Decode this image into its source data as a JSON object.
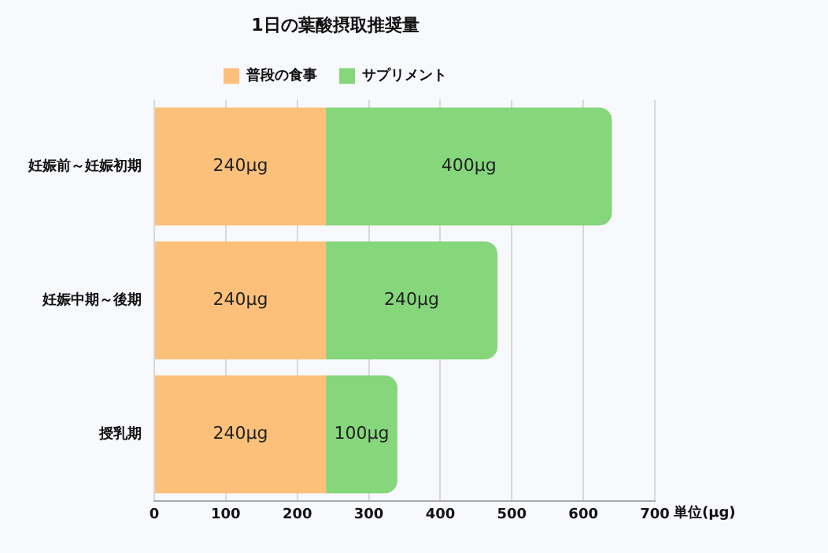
{
  "chart_data": {
    "type": "bar",
    "orientation": "horizontal",
    "stacked": true,
    "title": "1日の葉酸摂取推奨量",
    "xlabel": "単位(μg)",
    "categories": [
      "妊娠前～妊娠初期",
      "妊娠中期～後期",
      "授乳期"
    ],
    "series": [
      {
        "name": "普段の食事",
        "color": "#fdc07a",
        "values": [
          240,
          240,
          240
        ],
        "value_labels": [
          "240μg",
          "240μg",
          "240μg"
        ]
      },
      {
        "name": "サプリメント",
        "color": "#86d67c",
        "values": [
          400,
          240,
          100
        ],
        "value_labels": [
          "400μg",
          "240μg",
          "100μg"
        ]
      }
    ],
    "xlim": [
      0,
      700
    ],
    "xticks": [
      0,
      100,
      200,
      300,
      400,
      500,
      600,
      700
    ],
    "grid": "x",
    "legend": "top"
  }
}
